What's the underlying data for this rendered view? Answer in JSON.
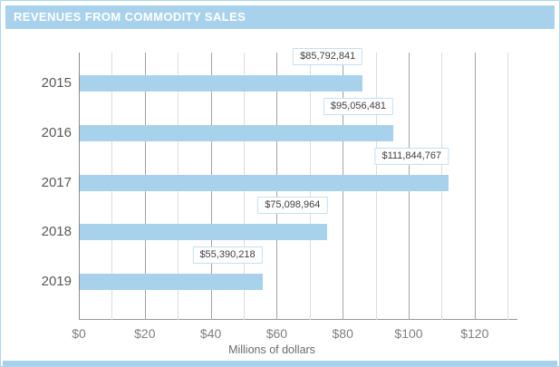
{
  "header": {
    "title": "REVENUES FROM COMMODITY SALES",
    "bg_color": "#a8d2ec",
    "text_color": "#ffffff"
  },
  "chart_data": {
    "type": "bar",
    "orientation": "horizontal",
    "title": "REVENUES FROM COMMODITY SALES",
    "categories": [
      "2015",
      "2016",
      "2017",
      "2018",
      "2019"
    ],
    "values": [
      85792841,
      95056481,
      111844767,
      75098964,
      55390218
    ],
    "value_labels": [
      "$85,792,841",
      "$95,056,481",
      "$111,844,767",
      "$75,098,964",
      "$55,390,218"
    ],
    "xlabel": "Millions of dollars",
    "x_ticks": [
      0,
      20,
      40,
      60,
      80,
      100,
      120
    ],
    "x_tick_labels": [
      "$0",
      "$20",
      "$40",
      "$60",
      "$80",
      "$100",
      "$120"
    ],
    "x_minor_interval": 10,
    "xlim": [
      0,
      133
    ],
    "grid": true,
    "legend": false,
    "colors": {
      "bar": "#a8d2ec",
      "major_grid": "#a3a3a3",
      "minor_grid": "#dcdcdc",
      "axis_line": "#999999",
      "zero_line": "#8a8a8a",
      "year_label": "#595959",
      "tick_label": "#7f7f7f",
      "value_label_text": "#3f3f3f",
      "value_label_border": "#c5dff1",
      "frame_border": "#aed6ee"
    }
  },
  "footer": {
    "strip_color": "#a8d2ec"
  }
}
